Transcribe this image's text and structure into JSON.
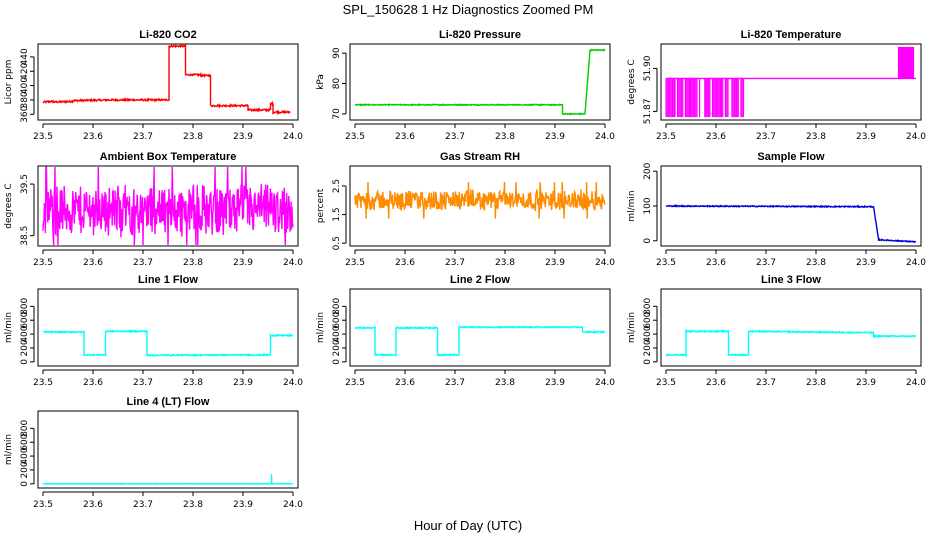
{
  "figure": {
    "title": "SPL_150628  1 Hz Diagnostics Zoomed PM",
    "xlabel": "Hour of Day (UTC)"
  },
  "chart_data": [
    {
      "type": "line",
      "title": "Li-820 CO2",
      "ylabel": "Licor ppm",
      "color": "#ff0000",
      "xlim": [
        23.49,
        24.01
      ],
      "ylim": [
        352,
        458
      ],
      "xticks": [
        23.5,
        23.6,
        23.7,
        23.8,
        23.9,
        24.0
      ],
      "xtick_labels": [
        "23.5",
        "23.6",
        "23.7",
        "23.8",
        "23.9",
        "24.0"
      ],
      "yticks": [
        360,
        380,
        400,
        420,
        440
      ],
      "ytick_labels": [
        "360",
        "380",
        "400",
        "420",
        "440"
      ],
      "noise": 1.2,
      "segments": [
        [
          23.5,
          23.52,
          377,
          378
        ],
        [
          23.52,
          23.56,
          377,
          378
        ],
        [
          23.56,
          23.64,
          379,
          380
        ],
        [
          23.64,
          23.752,
          380,
          380
        ],
        [
          23.752,
          23.785,
          455,
          455
        ],
        [
          23.785,
          23.815,
          415,
          415
        ],
        [
          23.815,
          23.835,
          414,
          414
        ],
        [
          23.835,
          23.91,
          372,
          372
        ],
        [
          23.91,
          23.955,
          366,
          366
        ],
        [
          23.955,
          23.96,
          375,
          375
        ],
        [
          23.96,
          23.995,
          363,
          363
        ]
      ]
    },
    {
      "type": "line",
      "title": "Li-820 Pressure",
      "ylabel": "kPa",
      "color": "#00cc00",
      "xlim": [
        23.49,
        24.01
      ],
      "ylim": [
        68,
        93
      ],
      "xticks": [
        23.5,
        23.6,
        23.7,
        23.8,
        23.9,
        24.0
      ],
      "xtick_labels": [
        "23.5",
        "23.6",
        "23.7",
        "23.8",
        "23.9",
        "24.0"
      ],
      "yticks": [
        70,
        80,
        90
      ],
      "ytick_labels": [
        "70",
        "80",
        "90"
      ],
      "noise": 0.15,
      "segments": [
        [
          23.5,
          23.915,
          73,
          73
        ],
        [
          23.915,
          23.96,
          70,
          70
        ],
        [
          23.96,
          23.97,
          70,
          91
        ],
        [
          23.97,
          24.0,
          91,
          91
        ]
      ]
    },
    {
      "type": "line",
      "title": "Li-820 Temperature",
      "ylabel": "degrees C",
      "color": "#ff00ff",
      "xlim": [
        23.49,
        24.01
      ],
      "ylim": [
        51.864,
        51.917
      ],
      "xticks": [
        23.5,
        23.6,
        23.7,
        23.8,
        23.9,
        24.0
      ],
      "xtick_labels": [
        "23.5",
        "23.6",
        "23.7",
        "23.8",
        "23.9",
        "24.0"
      ],
      "yticks": [
        51.87,
        51.9
      ],
      "ytick_labels": [
        "51.87",
        "51.90"
      ],
      "noise": 0,
      "flicker": [
        23.5,
        23.655,
        51.866,
        51.893
      ],
      "flicker2": [
        23.965,
        23.995,
        51.893,
        51.915
      ],
      "segments": [
        [
          23.5,
          24.0,
          51.893,
          51.893
        ]
      ]
    },
    {
      "type": "line",
      "title": "Ambient Box Temperature",
      "ylabel": "degrees C",
      "color": "#ff00ff",
      "xlim": [
        23.49,
        24.01
      ],
      "ylim": [
        38.3,
        39.85
      ],
      "xticks": [
        23.5,
        23.6,
        23.7,
        23.8,
        23.9,
        24.0
      ],
      "xtick_labels": [
        "23.5",
        "23.6",
        "23.7",
        "23.8",
        "23.9",
        "24.0"
      ],
      "yticks": [
        38.5,
        39.5
      ],
      "ytick_labels": [
        "38.5",
        "39.5"
      ],
      "band": [
        38.45,
        39.55,
        38.9
      ],
      "segments": [
        [
          23.5,
          24.0,
          39.0,
          39.0
        ]
      ]
    },
    {
      "type": "line",
      "title": "Gas Stream RH",
      "ylabel": "percent",
      "color": "#ff8c00",
      "xlim": [
        23.49,
        24.01
      ],
      "ylim": [
        0.4,
        3.2
      ],
      "xticks": [
        23.5,
        23.6,
        23.7,
        23.8,
        23.9,
        24.0
      ],
      "xtick_labels": [
        "23.5",
        "23.6",
        "23.7",
        "23.8",
        "23.9",
        "24.0"
      ],
      "yticks": [
        0.5,
        1.5,
        2.5
      ],
      "ytick_labels": [
        "0.5",
        "1.5",
        "2.5"
      ],
      "band": [
        1.6,
        2.4,
        2.0
      ],
      "segments": [
        [
          23.5,
          24.0,
          2.0,
          2.0
        ]
      ]
    },
    {
      "type": "line",
      "title": "Sample Flow",
      "ylabel": "ml/min",
      "color": "#0000dd",
      "xlim": [
        23.49,
        24.01
      ],
      "ylim": [
        -15,
        215
      ],
      "xticks": [
        23.5,
        23.6,
        23.7,
        23.8,
        23.9,
        24.0
      ],
      "xtick_labels": [
        "23.5",
        "23.6",
        "23.7",
        "23.8",
        "23.9",
        "24.0"
      ],
      "yticks": [
        0,
        100,
        200
      ],
      "ytick_labels": [
        "0",
        "100",
        "200"
      ],
      "noise": 1.5,
      "segments": [
        [
          23.5,
          23.915,
          100,
          98
        ],
        [
          23.915,
          23.925,
          98,
          5
        ],
        [
          23.925,
          24.0,
          3,
          -3
        ]
      ]
    },
    {
      "type": "line",
      "title": "Line 1 Flow",
      "ylabel": "ml/min",
      "color": "#00ffff",
      "xlim": [
        23.49,
        24.01
      ],
      "ylim": [
        -60,
        1050
      ],
      "xticks": [
        23.5,
        23.6,
        23.7,
        23.8,
        23.9,
        24.0
      ],
      "xtick_labels": [
        "23.5",
        "23.6",
        "23.7",
        "23.8",
        "23.9",
        "24.0"
      ],
      "yticks": [
        0,
        200,
        400,
        600,
        800
      ],
      "ytick_labels": [
        "0",
        "200",
        "400",
        "600",
        "800"
      ],
      "noise": 8,
      "segments": [
        [
          23.5,
          23.582,
          430,
          430
        ],
        [
          23.582,
          23.625,
          100,
          100
        ],
        [
          23.625,
          23.708,
          440,
          440
        ],
        [
          23.708,
          23.955,
          95,
          100
        ],
        [
          23.955,
          24.0,
          380,
          380
        ]
      ]
    },
    {
      "type": "line",
      "title": "Line 2 Flow",
      "ylabel": "ml/min",
      "color": "#00ffff",
      "xlim": [
        23.49,
        24.01
      ],
      "ylim": [
        -60,
        1050
      ],
      "xticks": [
        23.5,
        23.6,
        23.7,
        23.8,
        23.9,
        24.0
      ],
      "xtick_labels": [
        "23.5",
        "23.6",
        "23.7",
        "23.8",
        "23.9",
        "24.0"
      ],
      "yticks": [
        0,
        200,
        400,
        600,
        800
      ],
      "ytick_labels": [
        "0",
        "200",
        "400",
        "600",
        "800"
      ],
      "noise": 8,
      "segments": [
        [
          23.5,
          23.54,
          490,
          490
        ],
        [
          23.54,
          23.582,
          100,
          100
        ],
        [
          23.582,
          23.665,
          490,
          490
        ],
        [
          23.665,
          23.708,
          100,
          100
        ],
        [
          23.708,
          23.955,
          500,
          500
        ],
        [
          23.955,
          24.0,
          430,
          430
        ]
      ]
    },
    {
      "type": "line",
      "title": "Line 3 Flow",
      "ylabel": "ml/min",
      "color": "#00ffff",
      "xlim": [
        23.49,
        24.01
      ],
      "ylim": [
        -60,
        1050
      ],
      "xticks": [
        23.5,
        23.6,
        23.7,
        23.8,
        23.9,
        24.0
      ],
      "xtick_labels": [
        "23.5",
        "23.6",
        "23.7",
        "23.8",
        "23.9",
        "24.0"
      ],
      "yticks": [
        0,
        200,
        400,
        600,
        800
      ],
      "ytick_labels": [
        "0",
        "200",
        "400",
        "600",
        "800"
      ],
      "noise": 8,
      "segments": [
        [
          23.5,
          23.54,
          100,
          100
        ],
        [
          23.54,
          23.625,
          440,
          440
        ],
        [
          23.625,
          23.665,
          100,
          100
        ],
        [
          23.665,
          23.915,
          440,
          420
        ],
        [
          23.915,
          24.0,
          370,
          370
        ]
      ]
    },
    {
      "type": "line",
      "title": "Line 4 (LT) Flow",
      "ylabel": "ml/min",
      "color": "#00ffff",
      "xlim": [
        23.49,
        24.01
      ],
      "ylim": [
        -60,
        1050
      ],
      "xticks": [
        23.5,
        23.6,
        23.7,
        23.8,
        23.9,
        24.0
      ],
      "xtick_labels": [
        "23.5",
        "23.6",
        "23.7",
        "23.8",
        "23.9",
        "24.0"
      ],
      "yticks": [
        0,
        200,
        400,
        600,
        800
      ],
      "ytick_labels": [
        "0",
        "200",
        "400",
        "600",
        "800"
      ],
      "noise": 3,
      "spike": [
        23.957,
        140
      ],
      "segments": [
        [
          23.5,
          24.0,
          0,
          0
        ]
      ]
    }
  ]
}
